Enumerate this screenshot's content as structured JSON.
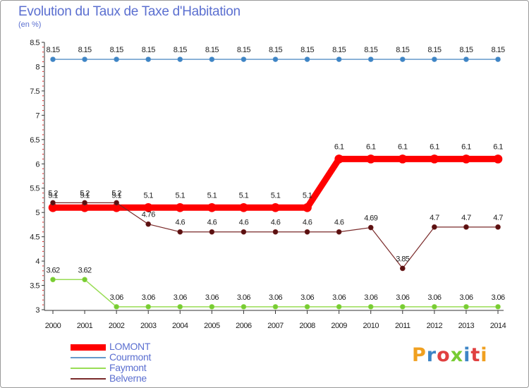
{
  "chart_data": {
    "type": "line",
    "title": "Evolution du Taux de Taxe d'Habitation",
    "subtitle": "(en %)",
    "x": [
      "2000",
      "2001",
      "2002",
      "2003",
      "2004",
      "2005",
      "2006",
      "2007",
      "2008",
      "2009",
      "2010",
      "2011",
      "2012",
      "2013",
      "2014"
    ],
    "ylim": [
      3,
      8.5
    ],
    "yticks": [
      "3",
      "3.5",
      "4",
      "4.5",
      "5",
      "5.5",
      "6",
      "6.5",
      "7",
      "7.5",
      "8",
      "8.5"
    ],
    "grid": false,
    "legend_position": "bottom-left",
    "series": [
      {
        "name": "LOMONT",
        "color": "#ff0000",
        "marker_color": "#ff0000",
        "width": 9,
        "marker_r": 6,
        "values": [
          5.1,
          5.1,
          5.1,
          5.1,
          5.1,
          5.1,
          5.1,
          5.1,
          5.1,
          6.1,
          6.1,
          6.1,
          6.1,
          6.1,
          6.1
        ],
        "labels": [
          "5.1",
          "5.1",
          "5.1",
          "5.1",
          "5.1",
          "5.1",
          "5.1",
          "5.1",
          "5.1",
          "6.1",
          "6.1",
          "6.1",
          "6.1",
          "6.1",
          "6.1"
        ]
      },
      {
        "name": "Courmont",
        "color": "#6699cc",
        "marker_color": "#3d85c6",
        "width": 1.5,
        "marker_r": 3.5,
        "values": [
          8.15,
          8.15,
          8.15,
          8.15,
          8.15,
          8.15,
          8.15,
          8.15,
          8.15,
          8.15,
          8.15,
          8.15,
          8.15,
          8.15,
          8.15
        ],
        "labels": [
          "8.15",
          "8.15",
          "8.15",
          "8.15",
          "8.15",
          "8.15",
          "8.15",
          "8.15",
          "8.15",
          "8.15",
          "8.15",
          "8.15",
          "8.15",
          "8.15",
          "8.15"
        ]
      },
      {
        "name": "Faymont",
        "color": "#99dd55",
        "marker_color": "#77cc33",
        "width": 1.5,
        "marker_r": 3.5,
        "values": [
          3.62,
          3.62,
          3.06,
          3.06,
          3.06,
          3.06,
          3.06,
          3.06,
          3.06,
          3.06,
          3.06,
          3.06,
          3.06,
          3.06,
          3.06
        ],
        "labels": [
          "3.62",
          "3.62",
          "3.06",
          "3.06",
          "3.06",
          "3.06",
          "3.06",
          "3.06",
          "3.06",
          "3.06",
          "3.06",
          "3.06",
          "3.06",
          "3.06",
          "3.06"
        ]
      },
      {
        "name": "Belverne",
        "color": "#7a2a2a",
        "marker_color": "#5a1010",
        "width": 1.2,
        "marker_r": 3.5,
        "values": [
          5.2,
          5.2,
          5.2,
          4.76,
          4.6,
          4.6,
          4.6,
          4.6,
          4.6,
          4.6,
          4.69,
          3.85,
          4.7,
          4.7,
          4.7
        ],
        "labels": [
          "5.2",
          "5.2",
          "5.2",
          "4.76",
          "4.6",
          "4.6",
          "4.6",
          "4.6",
          "4.6",
          "4.6",
          "4.69",
          "3.85",
          "4.7",
          "4.7",
          "4.7"
        ]
      }
    ]
  },
  "branding": {
    "logo_text": "Proxiti",
    "logo_colors": [
      "#f0a020",
      "#3d85c6",
      "#e04040",
      "#77cc33",
      "#3d85c6",
      "#e04040",
      "#f0a020"
    ]
  }
}
